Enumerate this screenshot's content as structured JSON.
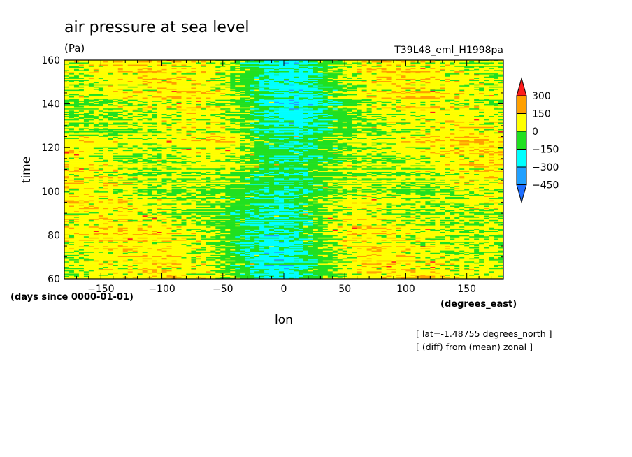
{
  "chart_data": {
    "type": "heatmap",
    "title": "air pressure at sea level",
    "units": "(Pa)",
    "run_label": "T39L48_eml_H1998pa",
    "xlabel": "lon",
    "ylabel": "time",
    "x_units": "(degrees_east)",
    "y_units": "(days since 0000-01-01)",
    "xlim": [
      -180,
      180
    ],
    "ylim": [
      60,
      160
    ],
    "x_ticks": [
      -150,
      -100,
      -50,
      0,
      50,
      100,
      150
    ],
    "y_ticks": [
      60,
      80,
      100,
      120,
      140,
      160
    ],
    "annotations": [
      "[ lat=-1.48755 degrees_north ]",
      "[ (diff) from (mean) zonal ]"
    ],
    "colorbar": {
      "levels": [
        300,
        150,
        0,
        -150,
        -300,
        -450
      ],
      "colors": [
        "#ff1c1c",
        "#ffa000",
        "#ffff00",
        "#20e020",
        "#00ffff",
        "#20a0ff",
        "#1e6eff"
      ],
      "labels": [
        "300",
        "150",
        "0",
        "−150",
        "−300",
        "−450"
      ]
    },
    "field_description": {
      "negative_band_center_lon": 0,
      "negative_band_halfwidth_lon": 28,
      "positive_regions_lon": [
        [
          -180,
          -60
        ],
        [
          30,
          180
        ]
      ],
      "time_step_days": 0.5
    }
  }
}
